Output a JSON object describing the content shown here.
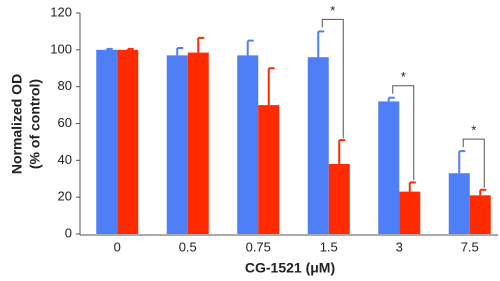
{
  "chart_data": {
    "type": "bar",
    "x_label": "CG-1521 (μM)",
    "y_label": [
      "Normalized OD",
      "(% of control)"
    ],
    "categories": [
      "0",
      "0.5",
      "0.75",
      "1.5",
      "3",
      "7.5"
    ],
    "series": [
      {
        "color": "#4f7ff7",
        "values": [
          100,
          97,
          97,
          96,
          72,
          33
        ],
        "errors": [
          0.5,
          4,
          8,
          14,
          2,
          12
        ]
      },
      {
        "color": "#ff2a00",
        "values": [
          100,
          98.5,
          70,
          38,
          23,
          21
        ],
        "errors": [
          0.5,
          8,
          20,
          13,
          5,
          3
        ]
      }
    ],
    "annotations": [
      {
        "text": "*",
        "category": "1.5"
      },
      {
        "text": "*",
        "category": "3"
      },
      {
        "text": "*",
        "category": "7.5"
      }
    ],
    "ylim": [
      0,
      120
    ],
    "yticks": [
      0,
      20,
      40,
      60,
      80,
      100,
      120
    ],
    "grid": false
  }
}
